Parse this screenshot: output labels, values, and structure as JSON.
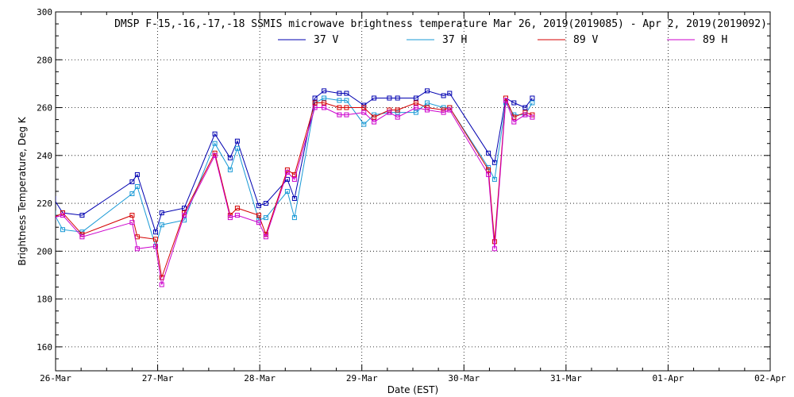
{
  "chart_data": {
    "type": "line",
    "title": "DMSP F-15,-16,-17,-18 SSMIS microwave brightness temperature Mar 26, 2019(2019085) - Apr  2, 2019(2019092)",
    "xlabel": "Date (EST)",
    "ylabel": "Brightness Temperature, Deg K",
    "xlim": [
      0,
      7
    ],
    "ylim": [
      150,
      300
    ],
    "x_ticks": [
      {
        "value": 0,
        "label": "26-Mar"
      },
      {
        "value": 1,
        "label": "27-Mar"
      },
      {
        "value": 2,
        "label": "28-Mar"
      },
      {
        "value": 3,
        "label": "29-Mar"
      },
      {
        "value": 4,
        "label": "30-Mar"
      },
      {
        "value": 5,
        "label": "31-Mar"
      },
      {
        "value": 6,
        "label": "01-Apr"
      },
      {
        "value": 7,
        "label": "02-Apr"
      }
    ],
    "y_ticks": [
      {
        "value": 160,
        "label": "160"
      },
      {
        "value": 180,
        "label": "180"
      },
      {
        "value": 200,
        "label": "200"
      },
      {
        "value": 220,
        "label": "220"
      },
      {
        "value": 240,
        "label": "240"
      },
      {
        "value": 260,
        "label": "260"
      },
      {
        "value": 280,
        "label": "280"
      },
      {
        "value": 300,
        "label": "300"
      }
    ],
    "grid": true,
    "legend_position": "top",
    "x": [
      0.1,
      0.26,
      0.75,
      0.8,
      0.98,
      1.03,
      1.26,
      1.58,
      1.72,
      1.76,
      1.98,
      2.05,
      2.25,
      2.33,
      2.5,
      2.55,
      2.63,
      2.71,
      2.83,
      2.91,
      3.0,
      3.1,
      3.23,
      3.35,
      3.53,
      3.62,
      3.75,
      3.83,
      4.23,
      4.28,
      4.37,
      4.45,
      4.56,
      4.66
    ],
    "series": [
      {
        "name": "37 V",
        "color": "#0000b0",
        "values": [
          216,
          215,
          229,
          232,
          208,
          216,
          218,
          249,
          239,
          246,
          219,
          220,
          230,
          222,
          264,
          267,
          266,
          266,
          261,
          264,
          264,
          264,
          267,
          265,
          266,
          241,
          237,
          264,
          262,
          260,
          264,
          264,
          264,
          264
        ]
      },
      {
        "name": "37 H",
        "color": "#1a9ad6",
        "values": [
          209,
          208,
          224,
          227,
          202,
          211,
          213,
          245,
          234,
          243,
          214,
          214,
          225,
          214,
          262,
          264,
          263,
          263,
          253,
          257,
          258,
          258,
          262,
          260,
          260,
          235,
          230,
          262,
          257,
          257,
          262,
          262,
          262,
          262
        ]
      }
    ],
    "legend": [
      {
        "name": "37 V",
        "color": "#0000b0"
      },
      {
        "name": "37 H",
        "color": "#1a9ad6"
      },
      {
        "name": "89 V",
        "color": "#d40000"
      },
      {
        "name": "89 H",
        "color": "#cc00cc"
      }
    ],
    "series_points": [
      {
        "name": "37 V",
        "color": "#0000b0",
        "points": [
          [
            -0.02,
            222
          ],
          [
            0.07,
            216
          ],
          [
            0.26,
            215
          ],
          [
            0.75,
            229
          ],
          [
            0.8,
            232
          ],
          [
            0.98,
            208
          ],
          [
            1.04,
            216
          ],
          [
            1.26,
            218
          ],
          [
            1.56,
            249
          ],
          [
            1.71,
            239
          ],
          [
            1.78,
            246
          ],
          [
            1.99,
            219
          ],
          [
            2.06,
            220
          ],
          [
            2.27,
            230
          ],
          [
            2.34,
            222
          ],
          [
            2.54,
            264
          ],
          [
            2.63,
            267
          ],
          [
            2.78,
            266
          ],
          [
            2.85,
            266
          ],
          [
            3.02,
            261
          ],
          [
            3.12,
            264
          ],
          [
            3.27,
            264
          ],
          [
            3.35,
            264
          ],
          [
            3.53,
            264
          ],
          [
            3.64,
            267
          ],
          [
            3.8,
            265
          ],
          [
            3.86,
            266
          ],
          [
            4.24,
            241
          ],
          [
            4.3,
            237
          ],
          [
            4.41,
            264
          ],
          [
            4.49,
            262
          ],
          [
            4.6,
            260
          ],
          [
            4.67,
            264
          ]
        ]
      },
      {
        "name": "37 H",
        "color": "#1a9ad6",
        "points": [
          [
            -0.02,
            216
          ],
          [
            0.07,
            209
          ],
          [
            0.26,
            208
          ],
          [
            0.75,
            224
          ],
          [
            0.8,
            227
          ],
          [
            0.98,
            202
          ],
          [
            1.04,
            211
          ],
          [
            1.26,
            213
          ],
          [
            1.56,
            245
          ],
          [
            1.71,
            234
          ],
          [
            1.78,
            243
          ],
          [
            1.99,
            213
          ],
          [
            2.06,
            214
          ],
          [
            2.27,
            225
          ],
          [
            2.34,
            214
          ],
          [
            2.54,
            262
          ],
          [
            2.63,
            264
          ],
          [
            2.78,
            263
          ],
          [
            2.85,
            263
          ],
          [
            3.02,
            253
          ],
          [
            3.12,
            257
          ],
          [
            3.27,
            258
          ],
          [
            3.35,
            258
          ],
          [
            3.53,
            258
          ],
          [
            3.64,
            262
          ],
          [
            3.8,
            260
          ],
          [
            3.86,
            260
          ],
          [
            4.24,
            235
          ],
          [
            4.3,
            230
          ],
          [
            4.41,
            262
          ],
          [
            4.49,
            257
          ],
          [
            4.6,
            257
          ],
          [
            4.67,
            262
          ]
        ]
      },
      {
        "name": "89 V",
        "color": "#d40000",
        "points": [
          [
            -0.02,
            214
          ],
          [
            0.07,
            216
          ],
          [
            0.26,
            207
          ],
          [
            0.75,
            215
          ],
          [
            0.8,
            206
          ],
          [
            0.98,
            205
          ],
          [
            1.04,
            189
          ],
          [
            1.26,
            216
          ],
          [
            1.56,
            241
          ],
          [
            1.71,
            215
          ],
          [
            1.78,
            218
          ],
          [
            1.99,
            215
          ],
          [
            2.06,
            207
          ],
          [
            2.27,
            234
          ],
          [
            2.34,
            232
          ],
          [
            2.54,
            262
          ],
          [
            2.63,
            262
          ],
          [
            2.78,
            260
          ],
          [
            2.85,
            260
          ],
          [
            3.02,
            260
          ],
          [
            3.12,
            256
          ],
          [
            3.27,
            259
          ],
          [
            3.35,
            259
          ],
          [
            3.53,
            262
          ],
          [
            3.64,
            260
          ],
          [
            3.8,
            259
          ],
          [
            3.86,
            260
          ],
          [
            4.24,
            234
          ],
          [
            4.3,
            204
          ],
          [
            4.41,
            264
          ],
          [
            4.49,
            256
          ],
          [
            4.6,
            258
          ],
          [
            4.67,
            257
          ]
        ]
      },
      {
        "name": "89 H",
        "color": "#cc00cc",
        "points": [
          [
            -0.02,
            214
          ],
          [
            0.07,
            215
          ],
          [
            0.26,
            206
          ],
          [
            0.75,
            212
          ],
          [
            0.8,
            201
          ],
          [
            0.98,
            202
          ],
          [
            1.04,
            186
          ],
          [
            1.26,
            215
          ],
          [
            1.56,
            240
          ],
          [
            1.71,
            214
          ],
          [
            1.78,
            215
          ],
          [
            1.99,
            212
          ],
          [
            2.06,
            206
          ],
          [
            2.27,
            233
          ],
          [
            2.34,
            230
          ],
          [
            2.54,
            260
          ],
          [
            2.63,
            260
          ],
          [
            2.78,
            257
          ],
          [
            2.85,
            257
          ],
          [
            3.02,
            258
          ],
          [
            3.12,
            254
          ],
          [
            3.27,
            258
          ],
          [
            3.35,
            256
          ],
          [
            3.53,
            260
          ],
          [
            3.64,
            259
          ],
          [
            3.8,
            258
          ],
          [
            3.86,
            259
          ],
          [
            4.24,
            232
          ],
          [
            4.3,
            201
          ],
          [
            4.41,
            263
          ],
          [
            4.49,
            254
          ],
          [
            4.6,
            257
          ],
          [
            4.67,
            256
          ]
        ]
      }
    ]
  }
}
